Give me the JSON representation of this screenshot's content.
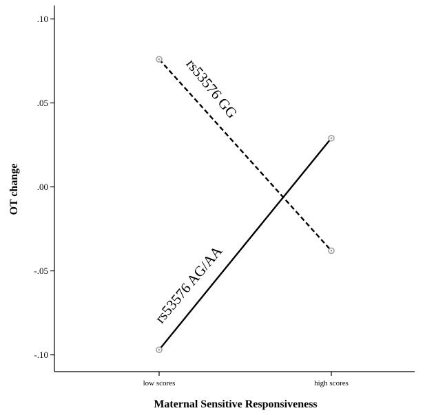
{
  "chart_data": {
    "type": "line",
    "xlabel": "Maternal Sensitive Responsiveness",
    "ylabel": "OT change",
    "categories": [
      "low scores",
      "high scores"
    ],
    "yticks": [
      ".10",
      ".05",
      ".00",
      "-.05",
      "-.10"
    ],
    "ytick_values": [
      0.1,
      0.05,
      0.0,
      -0.05,
      -0.1
    ],
    "ylim": [
      -0.11,
      0.108
    ],
    "grid": false,
    "series": [
      {
        "name": "rs53576 GG",
        "values": [
          0.076,
          -0.038
        ],
        "line_style": "dashed",
        "color": "#000000"
      },
      {
        "name": "rs53576 AG/AA",
        "values": [
          -0.097,
          0.029
        ],
        "line_style": "solid",
        "color": "#000000"
      }
    ],
    "marker_color": "#a0a0a0"
  }
}
